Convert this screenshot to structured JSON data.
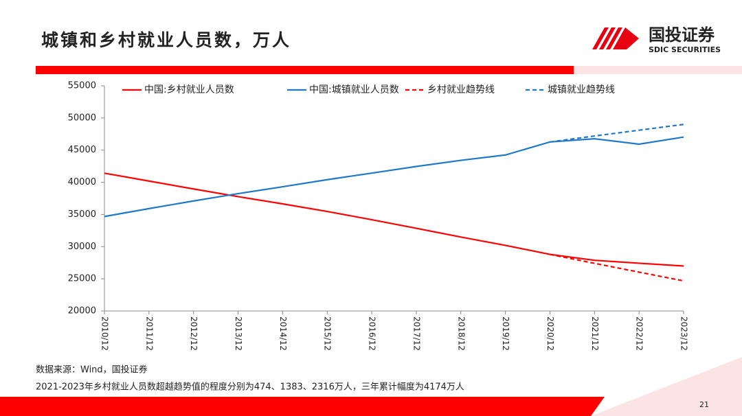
{
  "header": {
    "title": "城镇和乡村就业人员数，万人",
    "logo_name": "国投证券",
    "logo_en": "SDIC SECURITIES"
  },
  "chart_data": {
    "type": "line",
    "categories": [
      "2010/12",
      "2011/12",
      "2012/12",
      "2013/12",
      "2014/12",
      "2015/12",
      "2016/12",
      "2017/12",
      "2018/12",
      "2019/12",
      "2020/12",
      "2021/12",
      "2022/12",
      "2023/12"
    ],
    "series": [
      {
        "name": "中国:乡村就业人员数",
        "color": "#ff0000",
        "dash": false,
        "values": [
          41418,
          40193,
          38967,
          37774,
          36646,
          35462,
          34190,
          32850,
          31490,
          30198,
          28793,
          27879,
          27420,
          26992
        ]
      },
      {
        "name": "中国:城镇就业人员数",
        "color": "#1f78c8",
        "dash": false,
        "values": [
          34687,
          35914,
          37102,
          38240,
          39310,
          40410,
          41428,
          42462,
          43419,
          44247,
          46271,
          46773,
          45931,
          47032
        ]
      },
      {
        "name": "乡村就业趋势线",
        "color": "#ff0000",
        "dash": true,
        "values": [
          null,
          null,
          null,
          null,
          null,
          null,
          null,
          null,
          null,
          null,
          28793,
          27405,
          26037,
          24676
        ]
      },
      {
        "name": "城镇就业趋势线",
        "color": "#1f78c8",
        "dash": true,
        "values": [
          null,
          null,
          null,
          null,
          null,
          null,
          null,
          null,
          null,
          null,
          46271,
          47200,
          48100,
          49000
        ]
      }
    ],
    "ylim": [
      20000,
      55000
    ],
    "yticks": [
      20000,
      25000,
      30000,
      35000,
      40000,
      45000,
      50000,
      55000
    ],
    "legend": "top"
  },
  "footer": {
    "source": "数据来源：Wind，国投证券",
    "note": "2021-2023年乡村就业人员数超越趋势值的程度分别为474、1383、2316万人，三年累计幅度为4174万人",
    "page": "21"
  }
}
